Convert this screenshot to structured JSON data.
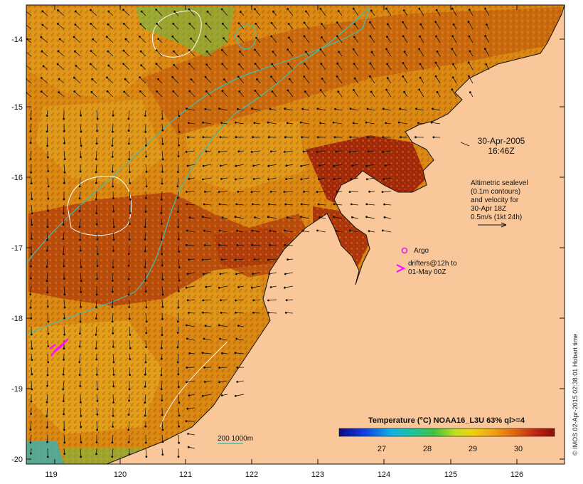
{
  "map": {
    "annotation_date": "30-Apr-2005",
    "annotation_time": "16:46Z",
    "sealevel_note": [
      "Altimetric sealevel",
      "(0.1m contours)",
      "and velocity for",
      "30-Apr 18Z",
      "0.5m/s (1kt 24h)"
    ],
    "argo_label": "Argo",
    "drifters_label": [
      "drifters@12h to",
      "01-May 00Z"
    ],
    "isobath_label": "200  1000m",
    "colorbar_title": "Temperature (°C) NOAA16_L3U 63% ql>=4",
    "colorbar_ticks": [
      "27",
      "28",
      "29",
      "30"
    ],
    "credit": "© IMOS 02-Apr-2015 02:38:01 Hobart time",
    "lat_ticks": [
      "-14",
      "-15",
      "-16",
      "-17",
      "-18",
      "-19",
      "-20"
    ],
    "lon_ticks": [
      "119",
      "120",
      "121",
      "122",
      "123",
      "124",
      "125",
      "126"
    ],
    "colors": {
      "land": "#f9c79a",
      "sst_warm": "#9b1d0a",
      "sst_mid": "#cf6f10",
      "sst_cool": "#e0a21a",
      "shelf_contour": "#3fbfb0",
      "sealevel_contour": "#ffffff",
      "argo": "#e020e0",
      "drifters": "#ff10ff"
    }
  }
}
